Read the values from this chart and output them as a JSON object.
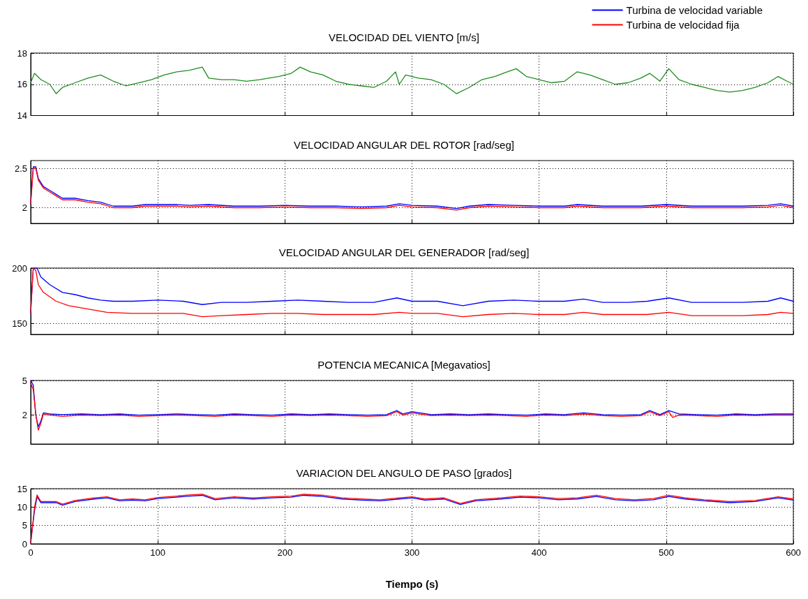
{
  "chart_data": [
    {
      "type": "line",
      "title": "VELOCIDAD DEL VIENTO [m/s]",
      "xlim": [
        0,
        600
      ],
      "xticks": [
        0,
        100,
        200,
        300,
        400,
        500,
        600
      ],
      "ylim": [
        14,
        18
      ],
      "yticks": [
        14,
        16,
        18
      ],
      "grid": true,
      "tick_labels": "y",
      "legend": false,
      "series": [
        {
          "color": "#1e8c1e",
          "x": [
            0,
            3,
            8,
            15,
            20,
            25,
            35,
            45,
            55,
            65,
            75,
            85,
            95,
            105,
            115,
            125,
            135,
            140,
            150,
            160,
            170,
            180,
            195,
            205,
            212,
            220,
            230,
            240,
            250,
            260,
            270,
            280,
            287,
            290,
            295,
            305,
            315,
            325,
            335,
            345,
            355,
            365,
            375,
            382,
            390,
            400,
            410,
            420,
            430,
            440,
            450,
            460,
            470,
            480,
            487,
            495,
            502,
            510,
            520,
            530,
            540,
            550,
            560,
            570,
            580,
            588,
            595,
            600
          ],
          "values": [
            16.1,
            16.7,
            16.3,
            16.0,
            15.4,
            15.8,
            16.1,
            16.4,
            16.6,
            16.2,
            15.9,
            16.1,
            16.3,
            16.6,
            16.8,
            16.9,
            17.1,
            16.4,
            16.3,
            16.3,
            16.2,
            16.3,
            16.5,
            16.7,
            17.1,
            16.8,
            16.6,
            16.2,
            16.0,
            15.9,
            15.8,
            16.2,
            16.8,
            16.0,
            16.6,
            16.4,
            16.3,
            16.0,
            15.4,
            15.8,
            16.3,
            16.5,
            16.8,
            17.0,
            16.5,
            16.3,
            16.1,
            16.2,
            16.8,
            16.6,
            16.3,
            16.0,
            16.1,
            16.4,
            16.7,
            16.2,
            17.0,
            16.3,
            16.0,
            15.8,
            15.6,
            15.5,
            15.6,
            15.8,
            16.1,
            16.5,
            16.2,
            16.0
          ]
        }
      ]
    },
    {
      "type": "line",
      "title": "VELOCIDAD ANGULAR DEL ROTOR [rad/seg]",
      "xlim": [
        0,
        600
      ],
      "xticks": [
        0,
        100,
        200,
        300,
        400,
        500,
        600
      ],
      "ylim": [
        1.8,
        2.6
      ],
      "yticks": [
        2,
        2.5
      ],
      "grid": true,
      "tick_labels": "y",
      "legend": "top right",
      "series": [
        {
          "name": "Turbina de velocidad variable",
          "color": "#0000ff",
          "x": [
            0,
            2,
            4,
            6,
            10,
            15,
            20,
            25,
            35,
            45,
            55,
            65,
            80,
            90,
            100,
            115,
            125,
            140,
            160,
            180,
            200,
            220,
            240,
            260,
            280,
            290,
            300,
            320,
            335,
            345,
            360,
            380,
            400,
            420,
            430,
            450,
            480,
            500,
            520,
            540,
            560,
            580,
            590,
            600
          ],
          "values": [
            2.07,
            2.52,
            2.52,
            2.37,
            2.27,
            2.22,
            2.17,
            2.12,
            2.12,
            2.09,
            2.07,
            2.02,
            2.02,
            2.04,
            2.04,
            2.04,
            2.03,
            2.04,
            2.02,
            2.02,
            2.03,
            2.02,
            2.02,
            2.01,
            2.02,
            2.05,
            2.03,
            2.02,
            1.99,
            2.02,
            2.04,
            2.03,
            2.02,
            2.02,
            2.04,
            2.02,
            2.02,
            2.04,
            2.02,
            2.02,
            2.02,
            2.03,
            2.05,
            2.02
          ]
        },
        {
          "name": "Turbina de velocidad fija",
          "color": "#ff0000",
          "x": [
            0,
            2,
            4,
            6,
            10,
            15,
            20,
            25,
            35,
            45,
            55,
            65,
            80,
            90,
            100,
            115,
            125,
            140,
            160,
            180,
            200,
            220,
            240,
            260,
            280,
            290,
            300,
            320,
            335,
            345,
            360,
            380,
            400,
            420,
            430,
            450,
            480,
            500,
            520,
            540,
            560,
            580,
            590,
            600
          ],
          "values": [
            2.05,
            2.5,
            2.5,
            2.35,
            2.25,
            2.2,
            2.15,
            2.1,
            2.1,
            2.07,
            2.05,
            2.0,
            2.0,
            2.02,
            2.02,
            2.02,
            2.01,
            2.02,
            2.0,
            2.0,
            2.01,
            2.0,
            2.0,
            1.99,
            2.0,
            2.03,
            2.01,
            2.0,
            1.97,
            2.0,
            2.02,
            2.01,
            2.0,
            2.0,
            2.02,
            2.0,
            2.0,
            2.02,
            2.0,
            2.0,
            2.0,
            2.01,
            2.03,
            2.0
          ]
        }
      ]
    },
    {
      "type": "line",
      "title": "VELOCIDAD ANGULAR DEL GENERADOR [rad/seg]",
      "xlim": [
        0,
        600
      ],
      "xticks": [
        0,
        100,
        200,
        300,
        400,
        500,
        600
      ],
      "ylim": [
        140,
        200
      ],
      "yticks": [
        150,
        200
      ],
      "grid": true,
      "tick_labels": "y",
      "legend": false,
      "series": [
        {
          "color": "#0000ff",
          "x": [
            0,
            2,
            5,
            8,
            15,
            25,
            35,
            45,
            55,
            65,
            80,
            100,
            120,
            135,
            150,
            170,
            190,
            210,
            230,
            250,
            270,
            288,
            300,
            320,
            340,
            360,
            380,
            400,
            420,
            435,
            450,
            470,
            485,
            502,
            520,
            540,
            560,
            580,
            590,
            600
          ],
          "values": [
            160,
            200,
            200,
            192,
            185,
            178,
            176,
            173,
            171,
            170,
            170,
            171,
            170,
            167,
            169,
            169,
            170,
            171,
            170,
            169,
            169,
            173,
            170,
            170,
            166,
            170,
            171,
            170,
            170,
            172,
            169,
            169,
            170,
            173,
            169,
            169,
            169,
            170,
            173,
            170
          ]
        },
        {
          "color": "#ff0000",
          "x": [
            0,
            2,
            4,
            6,
            10,
            20,
            30,
            45,
            60,
            80,
            100,
            120,
            135,
            150,
            170,
            190,
            210,
            230,
            250,
            270,
            290,
            300,
            320,
            340,
            360,
            380,
            400,
            420,
            435,
            450,
            470,
            485,
            502,
            520,
            540,
            560,
            580,
            590,
            600
          ],
          "values": [
            160,
            200,
            198,
            185,
            178,
            170,
            166,
            163,
            160,
            159,
            159,
            159,
            156,
            157,
            158,
            159,
            159,
            158,
            158,
            158,
            160,
            159,
            159,
            156,
            158,
            159,
            158,
            158,
            160,
            158,
            158,
            158,
            160,
            157,
            157,
            157,
            158,
            160,
            159
          ]
        }
      ]
    },
    {
      "type": "line",
      "title": "POTENCIA MECANICA [Megavatios]",
      "xlim": [
        0,
        600
      ],
      "xticks": [
        0,
        100,
        200,
        300,
        400,
        500,
        600
      ],
      "ylim": [
        -0.5,
        5
      ],
      "yticks": [
        2,
        5
      ],
      "grid": true,
      "tick_labels": "y",
      "legend": false,
      "series": [
        {
          "color": "#0000ff",
          "x": [
            0,
            2,
            4,
            6,
            8,
            10,
            15,
            25,
            40,
            55,
            70,
            85,
            100,
            115,
            130,
            145,
            160,
            175,
            190,
            205,
            220,
            235,
            250,
            265,
            280,
            288,
            293,
            300,
            315,
            330,
            345,
            360,
            375,
            390,
            405,
            420,
            435,
            450,
            465,
            480,
            487,
            495,
            502,
            510,
            525,
            540,
            555,
            570,
            585,
            600
          ],
          "values": [
            5,
            4.6,
            2,
            1,
            1.5,
            2.2,
            2.1,
            2.05,
            2.1,
            2.05,
            2.1,
            2.0,
            2.05,
            2.1,
            2.05,
            2.0,
            2.1,
            2.05,
            2.0,
            2.1,
            2.05,
            2.1,
            2.05,
            2.0,
            2.05,
            2.4,
            2.1,
            2.3,
            2.05,
            2.1,
            2.05,
            2.1,
            2.05,
            2.0,
            2.1,
            2.05,
            2.2,
            2.05,
            2.0,
            2.05,
            2.4,
            2.05,
            2.4,
            2.1,
            2.05,
            2.0,
            2.1,
            2.05,
            2.1,
            2.1
          ]
        },
        {
          "color": "#ff0000",
          "x": [
            0,
            2,
            4,
            6,
            8,
            10,
            15,
            25,
            40,
            55,
            70,
            85,
            100,
            115,
            130,
            145,
            160,
            175,
            190,
            205,
            220,
            235,
            250,
            265,
            280,
            288,
            293,
            300,
            315,
            330,
            345,
            360,
            375,
            390,
            405,
            420,
            435,
            450,
            465,
            480,
            487,
            495,
            502,
            505,
            510,
            525,
            540,
            555,
            570,
            585,
            600
          ],
          "values": [
            4.8,
            4.2,
            2,
            0.7,
            1.3,
            2.1,
            2.0,
            1.9,
            2.0,
            1.95,
            2.0,
            1.9,
            1.95,
            2.0,
            1.95,
            1.9,
            2.0,
            1.95,
            1.9,
            2.0,
            1.95,
            2.0,
            1.95,
            1.9,
            1.95,
            2.3,
            2.0,
            2.2,
            1.95,
            2.0,
            1.95,
            2.0,
            1.95,
            1.9,
            2.0,
            1.95,
            2.1,
            1.95,
            1.9,
            1.95,
            2.3,
            1.95,
            2.3,
            1.8,
            2.0,
            1.95,
            1.9,
            2.0,
            1.95,
            2.0,
            2.0
          ]
        }
      ]
    },
    {
      "type": "line",
      "title": "VARIACION DEL ANGULO DE PASO [grados]",
      "xlabel": "Tiempo (s)",
      "xlim": [
        0,
        600
      ],
      "xticks": [
        0,
        100,
        200,
        300,
        400,
        500,
        600
      ],
      "ylim": [
        0,
        15
      ],
      "yticks": [
        0,
        5,
        10,
        15
      ],
      "grid": true,
      "legend": false,
      "series": [
        {
          "color": "#0000ff",
          "x": [
            0,
            3,
            5,
            8,
            20,
            25,
            35,
            50,
            60,
            70,
            80,
            90,
            100,
            115,
            125,
            135,
            145,
            160,
            175,
            190,
            205,
            215,
            230,
            245,
            260,
            275,
            290,
            300,
            310,
            325,
            338,
            350,
            370,
            385,
            400,
            415,
            430,
            445,
            460,
            475,
            490,
            502,
            515,
            530,
            550,
            570,
            588,
            600
          ],
          "values": [
            0.5,
            9,
            12.8,
            11.2,
            11.2,
            10.5,
            11.5,
            12.2,
            12.5,
            11.7,
            11.9,
            11.7,
            12.3,
            12.7,
            13.0,
            13.2,
            12.0,
            12.5,
            12.2,
            12.5,
            12.7,
            13.2,
            12.9,
            12.2,
            11.9,
            11.7,
            12.2,
            12.5,
            11.9,
            12.2,
            10.7,
            11.7,
            12.2,
            12.7,
            12.5,
            12.0,
            12.2,
            12.9,
            12.0,
            11.7,
            12.0,
            12.9,
            12.2,
            11.7,
            11.2,
            11.5,
            12.5,
            11.9
          ]
        },
        {
          "color": "#ff0000",
          "x": [
            0,
            3,
            5,
            8,
            20,
            25,
            35,
            50,
            60,
            70,
            80,
            90,
            100,
            115,
            125,
            135,
            145,
            160,
            175,
            190,
            205,
            215,
            230,
            245,
            260,
            275,
            290,
            300,
            310,
            325,
            338,
            350,
            370,
            385,
            400,
            415,
            430,
            445,
            460,
            475,
            490,
            502,
            515,
            530,
            550,
            570,
            588,
            600
          ],
          "values": [
            0,
            10,
            13.3,
            11.5,
            11.5,
            10.8,
            11.8,
            12.5,
            12.8,
            12.0,
            12.2,
            12.0,
            12.6,
            13.0,
            13.3,
            13.5,
            12.3,
            12.8,
            12.5,
            12.8,
            13.0,
            13.5,
            13.2,
            12.5,
            12.2,
            12.0,
            12.5,
            12.8,
            12.2,
            12.5,
            11.0,
            12.0,
            12.5,
            13.0,
            12.8,
            12.3,
            12.5,
            13.2,
            12.3,
            12.0,
            12.3,
            13.2,
            12.5,
            12.0,
            11.5,
            11.8,
            12.8,
            12.2
          ]
        }
      ]
    }
  ]
}
